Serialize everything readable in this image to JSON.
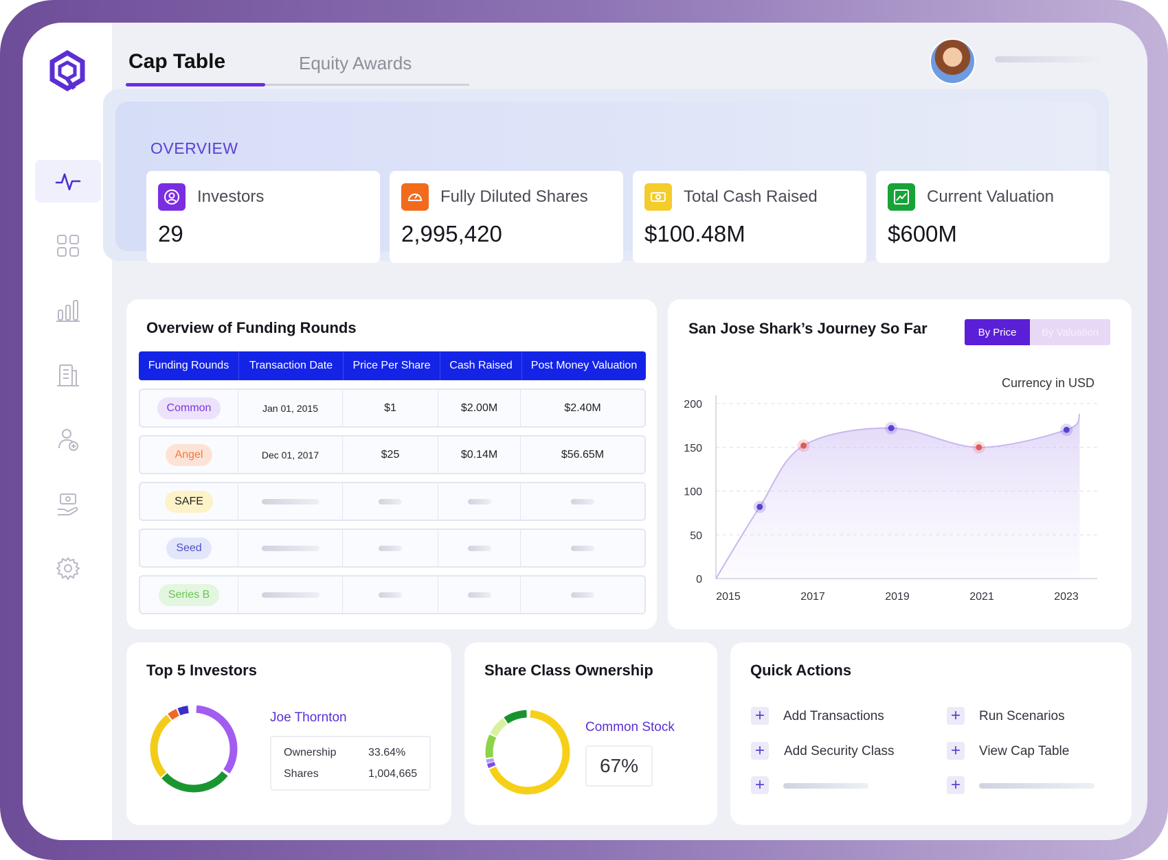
{
  "tabs": {
    "cap_table": "Cap Table",
    "equity_awards": "Equity Awards"
  },
  "overview": {
    "title": "OVERVIEW",
    "cards": [
      {
        "label": "Investors",
        "value": "29",
        "icon": "user-circle-icon",
        "color": "#7a2ee0"
      },
      {
        "label": "Fully Diluted Shares",
        "value": "2,995,420",
        "icon": "gauge-icon",
        "color": "#f26b1d"
      },
      {
        "label": "Total Cash Raised",
        "value": "$100.48M",
        "icon": "cash-icon",
        "color": "#f4cc2b"
      },
      {
        "label": "Current Valuation",
        "value": "$600M",
        "icon": "trend-up-icon",
        "color": "#17a338"
      }
    ]
  },
  "funding": {
    "title": "Overview of Funding Rounds",
    "headers": [
      "Funding Rounds",
      "Transaction Date",
      "Price Per Share",
      "Cash Raised",
      "Post Money Valuation"
    ],
    "rows": [
      {
        "round": "Common",
        "date": "Jan 01, 2015",
        "price": "$1",
        "cash": "$2.00M",
        "post": "$2.40M"
      },
      {
        "round": "Angel",
        "date": "Dec 01, 2017",
        "price": "$25",
        "cash": "$0.14M",
        "post": "$56.65M"
      },
      {
        "round": "SAFE"
      },
      {
        "round": "Seed"
      },
      {
        "round": "Series B"
      }
    ]
  },
  "journey": {
    "title": "San Jose Shark’s Journey So Far",
    "toggle_price": "By Price",
    "toggle_valuation": "By Valuation",
    "currency_note": "Currency in USD"
  },
  "chart_data": {
    "type": "area",
    "title": "San Jose Shark’s Journey So Far",
    "x": [
      2015,
      2016,
      2017,
      2019,
      2021,
      2023,
      2023.3
    ],
    "values": [
      0,
      82,
      152,
      172,
      150,
      170,
      188
    ],
    "markers": [
      {
        "x": 2016,
        "y": 82,
        "color": "#5b3fd2"
      },
      {
        "x": 2017,
        "y": 152,
        "color": "#e05a5a"
      },
      {
        "x": 2019,
        "y": 172,
        "color": "#5b3fd2"
      },
      {
        "x": 2021,
        "y": 150,
        "color": "#e05a5a"
      },
      {
        "x": 2023,
        "y": 170,
        "color": "#5b3fd2"
      }
    ],
    "x_ticks": [
      "2015",
      "2017",
      "2019",
      "2021",
      "2023"
    ],
    "y_ticks": [
      "200",
      "150",
      "100",
      "50",
      "0"
    ],
    "ylim": [
      0,
      200
    ],
    "xlim": [
      2015,
      2023.7
    ],
    "grid": true
  },
  "investors": {
    "title": "Top 5 Investors",
    "name": "Joe Thornton",
    "ownership_label": "Ownership",
    "ownership_value": "33.64%",
    "shares_label": "Shares",
    "shares_value": "1,004,665"
  },
  "share_class": {
    "title": "Share Class Ownership",
    "label": "Common Stock",
    "percent": "67%"
  },
  "quick_actions": {
    "title": "Quick Actions",
    "items": [
      "Add Transactions",
      "Run Scenarios",
      "Add Security Class",
      "View Cap Table"
    ]
  }
}
